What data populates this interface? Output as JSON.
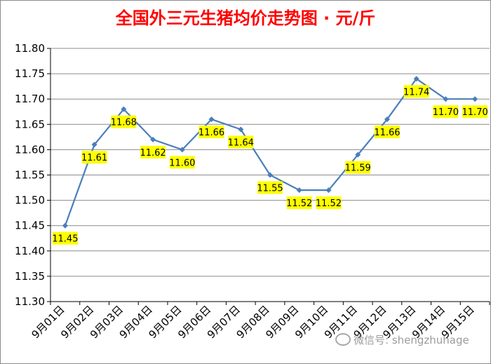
{
  "chart_data": {
    "type": "line",
    "title": "全国外三元生猪均价走势图 · 元/斤",
    "xlabel": "",
    "ylabel": "",
    "categories": [
      "9月01日",
      "9月02日",
      "9月03日",
      "9月04日",
      "9月05日",
      "9月06日",
      "9月07日",
      "9月08日",
      "9月09日",
      "9月10日",
      "9月11日",
      "9月12日",
      "9月13日",
      "9月14日",
      "9月15日"
    ],
    "series": [
      {
        "values": [
          11.45,
          11.61,
          11.68,
          11.62,
          11.6,
          11.66,
          11.64,
          11.55,
          11.52,
          11.52,
          11.59,
          11.66,
          11.74,
          11.7,
          11.7
        ]
      }
    ],
    "data_labels": [
      "11.45",
      "11.61",
      "11.68",
      "11.62",
      "11.60",
      "11.66",
      "11.64",
      "11.55",
      "11.52",
      "11.52",
      "11.59",
      "11.66",
      "11.74",
      "11.70",
      "11.70"
    ],
    "ylim": [
      11.3,
      11.8
    ],
    "y_ticks": [
      "11.30",
      "11.35",
      "11.40",
      "11.45",
      "11.50",
      "11.55",
      "11.60",
      "11.65",
      "11.70",
      "11.75",
      "11.80"
    ],
    "grid": true,
    "legend": "none",
    "colors": {
      "line": "#4a7ebb",
      "marker": "#4a7ebb",
      "label_bg": "#ffff00",
      "title": "#ff0000",
      "grid": "#8c8c8c"
    }
  },
  "watermark": {
    "text": "微信号: shengzhuhage",
    "icon": "wechat-icon"
  }
}
